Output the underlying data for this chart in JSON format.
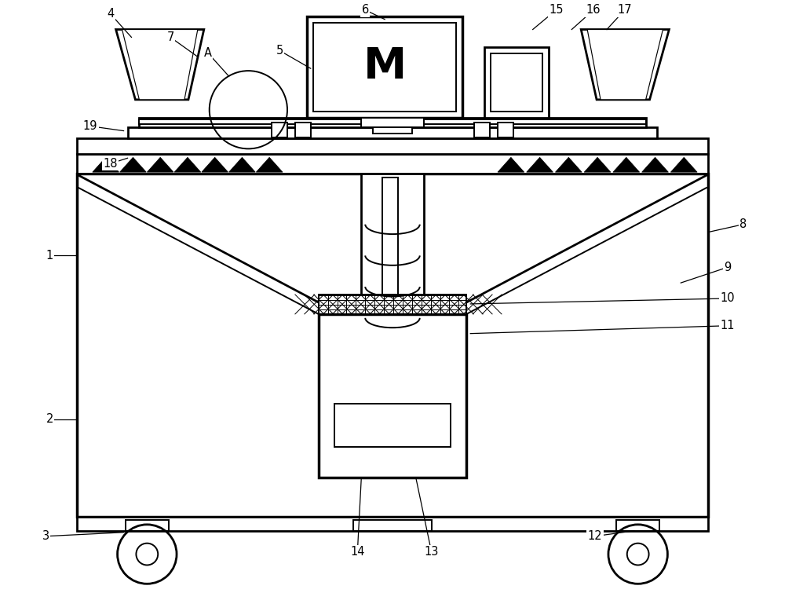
{
  "bg_color": "#ffffff",
  "line_color": "#000000",
  "fig_width": 10.0,
  "fig_height": 7.55,
  "dpi": 100
}
